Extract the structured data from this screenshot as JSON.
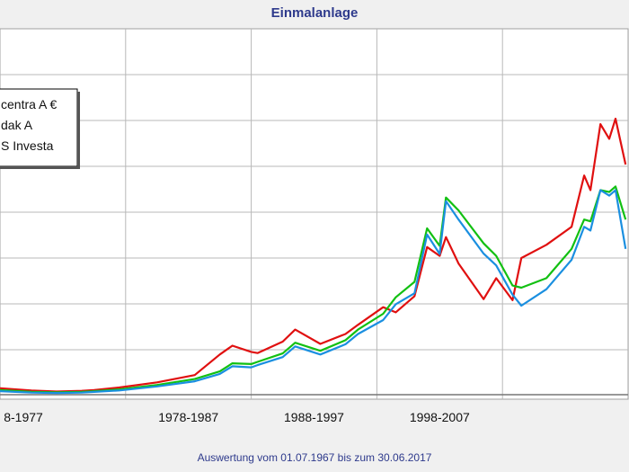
{
  "chart_data": {
    "type": "line",
    "title": "Einmalanlage",
    "footnote": "Auswertung vom 01.07.1967 bis zum 30.06.2017",
    "x_ticks": [
      "8-1977",
      "1978-1987",
      "1988-1997",
      "1998-2007"
    ],
    "x_range": [
      1967.5,
      2017.5
    ],
    "y_range": [
      0,
      100
    ],
    "grid": true,
    "legend_position": "top-left",
    "series": [
      {
        "name": "centra A €",
        "color": "#e01010",
        "x": [
          1967.5,
          1970,
          1972,
          1974,
          1975,
          1977,
          1980,
          1983,
          1985,
          1986,
          1987.5,
          1988,
          1990,
          1991,
          1993,
          1995,
          1996,
          1998,
          1999,
          2000.5,
          2001.5,
          2002.5,
          2003,
          2004,
          2006,
          2007,
          2008.3,
          2009,
          2011,
          2013,
          2014,
          2014.5,
          2015.3,
          2016,
          2016.5,
          2017.3
        ],
        "y": [
          2.0,
          1.4,
          1.1,
          1.3,
          1.5,
          2.2,
          3.6,
          5.6,
          11.2,
          13.6,
          11.9,
          11.6,
          14.7,
          18.0,
          14.1,
          16.8,
          19.3,
          24.1,
          22.7,
          27.1,
          40.5,
          38.1,
          43.2,
          36.0,
          26.3,
          32.0,
          26.0,
          37.5,
          41.1,
          46.0,
          60.0,
          56.0,
          74.0,
          70.0,
          75.5,
          63.0
        ]
      },
      {
        "name": "dak A",
        "color": "#12c012",
        "x": [
          1967.5,
          1970,
          1972,
          1974,
          1975,
          1977,
          1980,
          1983,
          1985,
          1986,
          1987.5,
          1988,
          1990,
          1991,
          1993,
          1995,
          1996,
          1998,
          1999,
          2000.5,
          2001.5,
          2002.5,
          2003,
          2004,
          2006,
          2007,
          2008.3,
          2009,
          2011,
          2013,
          2014,
          2014.5,
          2015.3,
          2016,
          2016.5,
          2017.3
        ],
        "y": [
          1.5,
          1.0,
          0.9,
          1.0,
          1.2,
          1.7,
          2.9,
          4.5,
          6.6,
          8.8,
          8.6,
          9.2,
          11.5,
          14.4,
          12.2,
          15.1,
          18.0,
          22.3,
          26.8,
          31.0,
          45.6,
          40.8,
          54.0,
          50.5,
          41.5,
          38.1,
          30.0,
          29.4,
          32.0,
          40.0,
          48.0,
          47.5,
          56.0,
          55.5,
          57.0,
          48.0
        ]
      },
      {
        "name": "S Investa",
        "color": "#1a8fe0",
        "x": [
          1967.5,
          1970,
          1972,
          1974,
          1975,
          1977,
          1980,
          1983,
          1985,
          1986,
          1987.5,
          1988,
          1990,
          1991,
          1993,
          1995,
          1996,
          1998,
          1999,
          2000.5,
          2001.5,
          2002.5,
          2003,
          2004,
          2006,
          2007,
          2008.3,
          2009,
          2011,
          2013,
          2014,
          2014.5,
          2015.3,
          2016,
          2016.5,
          2017.3
        ],
        "y": [
          1.2,
          0.8,
          0.7,
          0.8,
          1.0,
          1.4,
          2.5,
          3.9,
          5.9,
          8.0,
          7.7,
          8.3,
          10.5,
          13.4,
          11.2,
          14.0,
          16.8,
          20.6,
          24.9,
          27.9,
          43.9,
          38.6,
          53.0,
          48.0,
          38.7,
          35.5,
          27.5,
          24.5,
          29.0,
          37.0,
          46.0,
          45.0,
          56.0,
          54.5,
          56.0,
          40.0
        ]
      }
    ]
  }
}
